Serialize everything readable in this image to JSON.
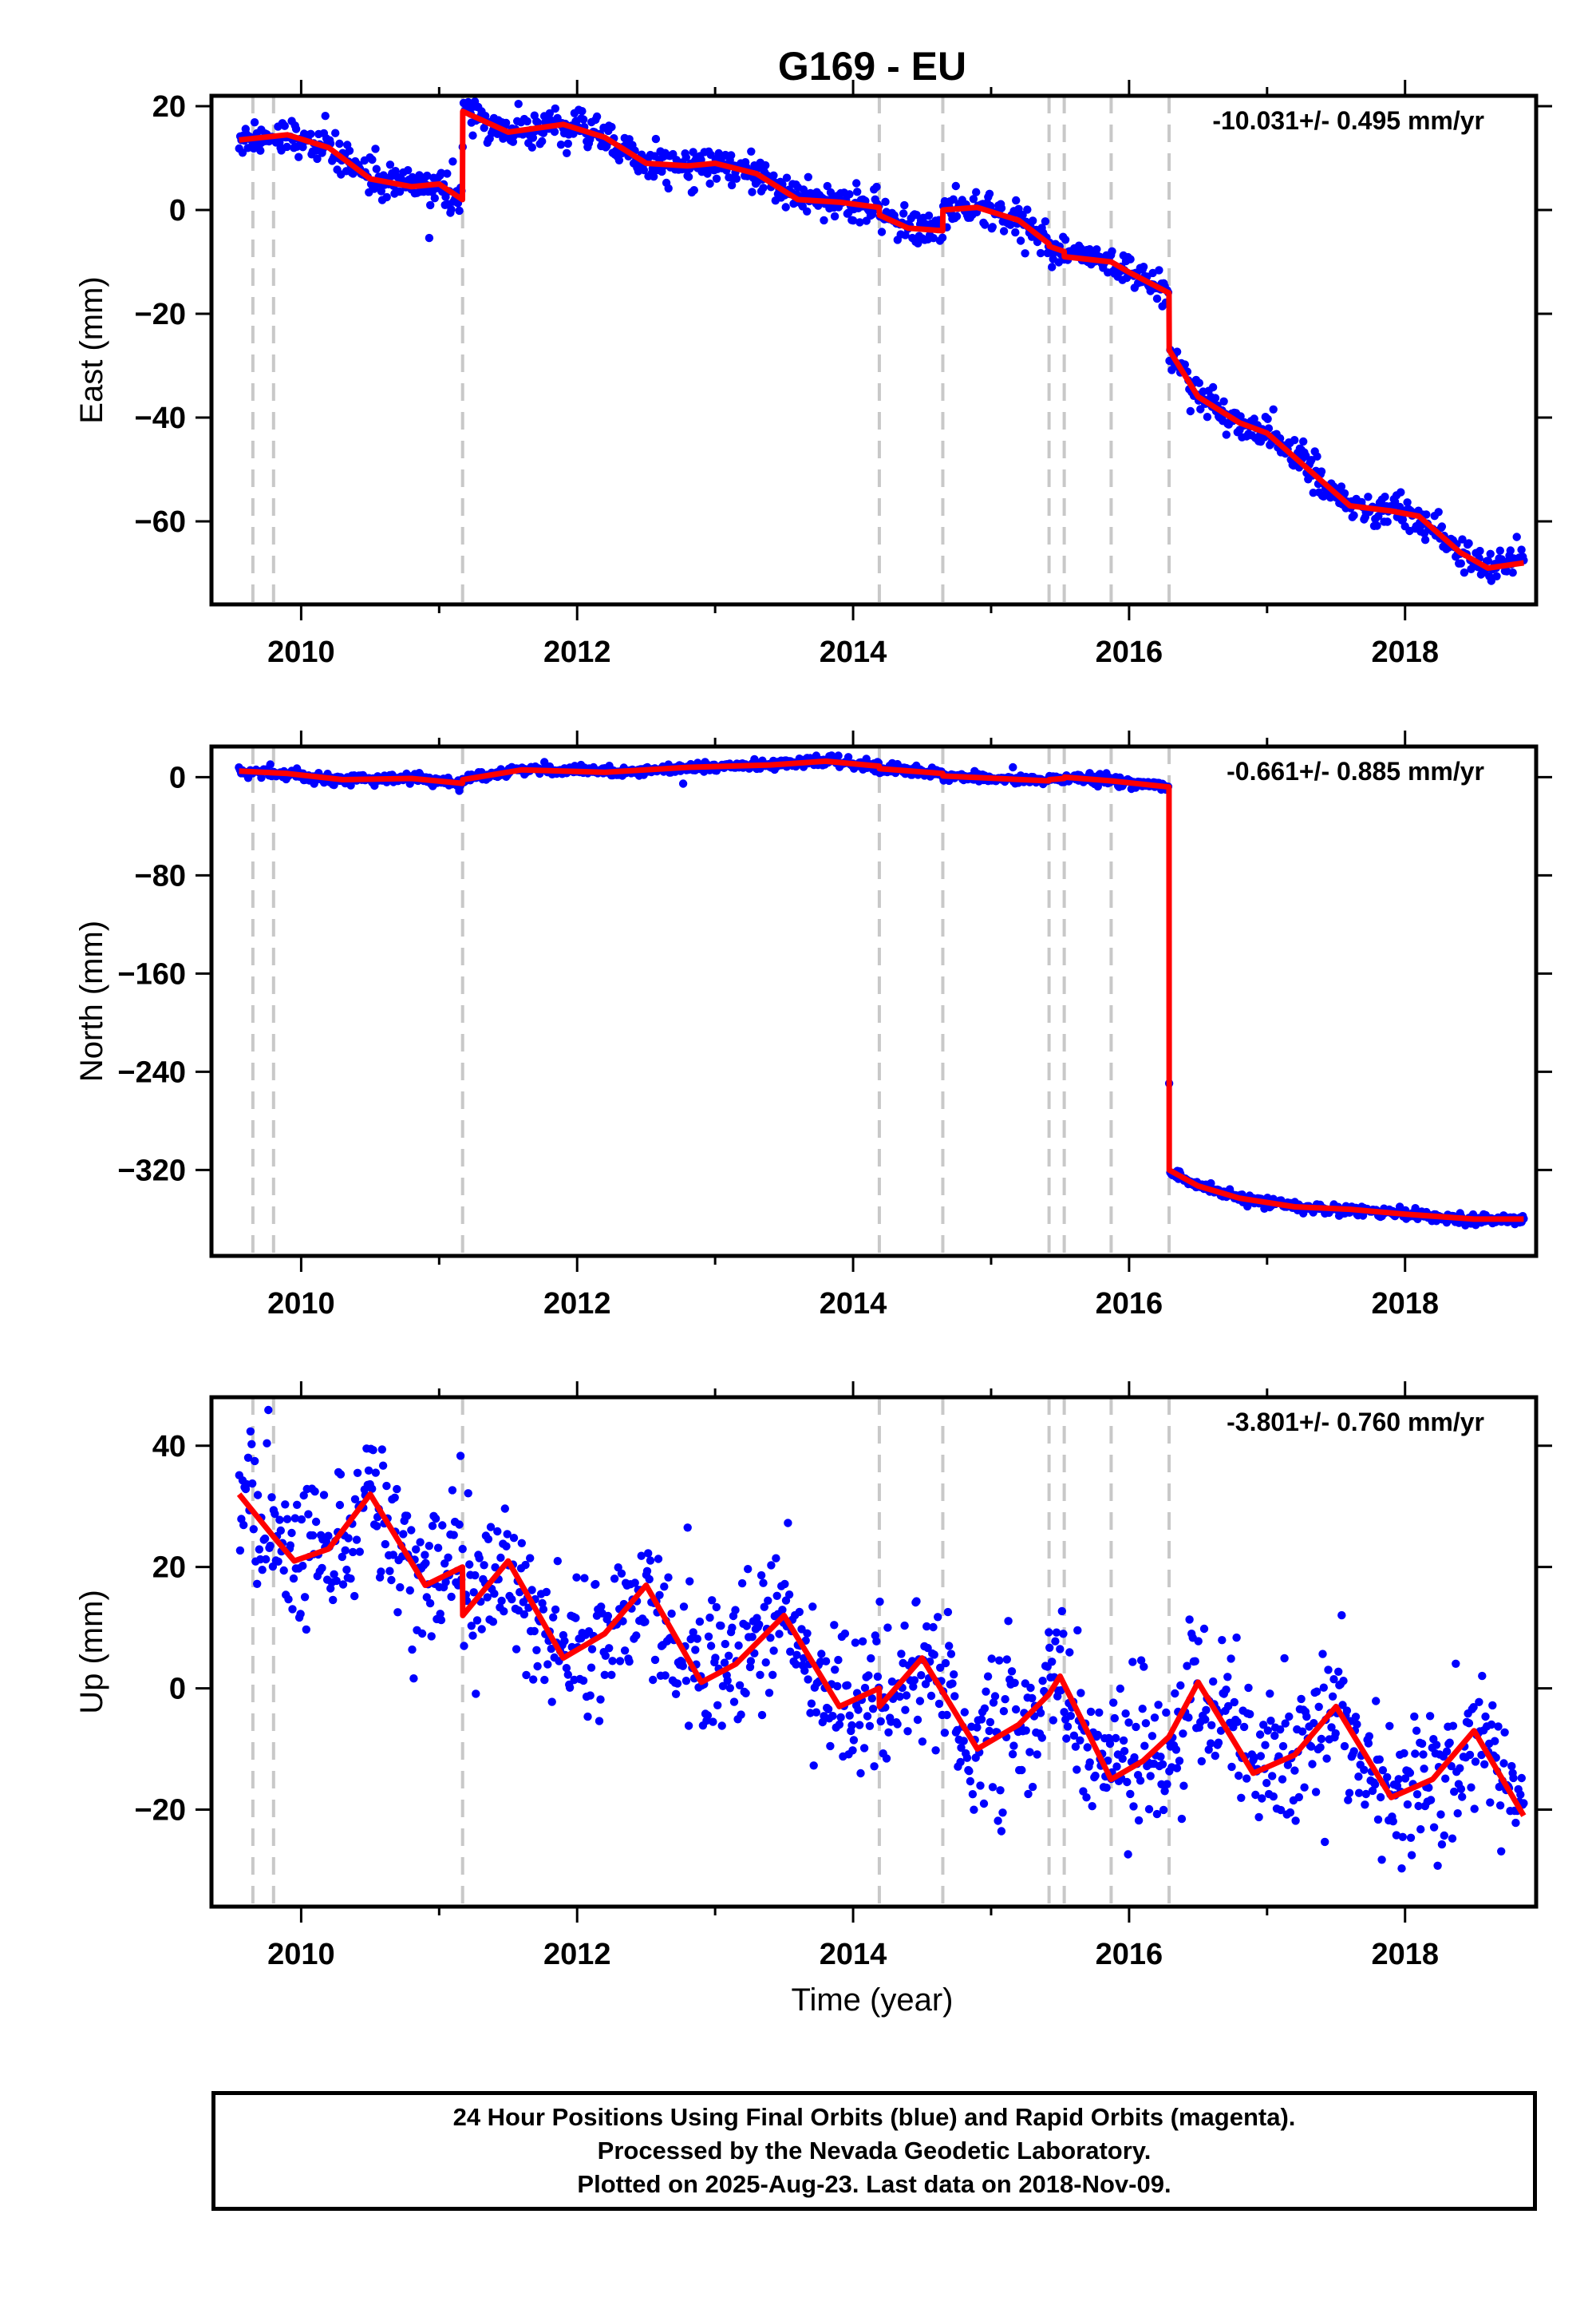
{
  "chart_data": {
    "title": "G169 - EU",
    "xlabel": "Time (year)",
    "x_ticks": [
      2010,
      2012,
      2014,
      2016,
      2018
    ],
    "xlim": [
      2009.35,
      2018.95
    ],
    "data_start": 2009.55,
    "data_end": 2018.86,
    "breaks": [
      2009.65,
      2009.8,
      2011.17,
      2014.19,
      2014.65,
      2015.42,
      2015.53,
      2015.87,
      2016.29
    ],
    "colors": {
      "points": "#0000ff",
      "model": "#ff0000",
      "breaks": "#c8c8c8"
    },
    "panels": [
      {
        "id": "east",
        "type": "scatter",
        "ylabel": "East (mm)",
        "rate": "-10.031+/- 0.495 mm/yr",
        "ylim": [
          -76,
          22
        ],
        "yticks": [
          20,
          0,
          -20,
          -40,
          -60
        ],
        "ytick_labels": [
          "20",
          "0",
          "−20",
          "−40",
          "−60"
        ],
        "noise": 1.6,
        "model": [
          [
            2009.55,
            13.5
          ],
          [
            2009.9,
            14.5
          ],
          [
            2010.2,
            12
          ],
          [
            2010.5,
            6
          ],
          [
            2010.8,
            4.5
          ],
          [
            2011.0,
            5
          ],
          [
            2011.169,
            2
          ],
          [
            2011.171,
            19
          ],
          [
            2011.5,
            15
          ],
          [
            2011.9,
            16.5
          ],
          [
            2012.2,
            14
          ],
          [
            2012.5,
            9
          ],
          [
            2012.8,
            8.5
          ],
          [
            2013.0,
            9
          ],
          [
            2013.3,
            7
          ],
          [
            2013.6,
            2
          ],
          [
            2013.9,
            1.5
          ],
          [
            2014.189,
            0.5
          ],
          [
            2014.191,
            -1
          ],
          [
            2014.4,
            -3.5
          ],
          [
            2014.649,
            -4
          ],
          [
            2014.651,
            0
          ],
          [
            2014.9,
            0.5
          ],
          [
            2015.2,
            -2
          ],
          [
            2015.419,
            -6.5
          ],
          [
            2015.421,
            -7
          ],
          [
            2015.529,
            -8
          ],
          [
            2015.531,
            -9
          ],
          [
            2015.869,
            -10
          ],
          [
            2015.871,
            -10
          ],
          [
            2016.0,
            -12
          ],
          [
            2016.289,
            -16
          ],
          [
            2016.291,
            -27
          ],
          [
            2016.5,
            -36
          ],
          [
            2016.8,
            -41
          ],
          [
            2017.0,
            -43
          ],
          [
            2017.3,
            -50
          ],
          [
            2017.6,
            -57
          ],
          [
            2017.9,
            -58
          ],
          [
            2018.1,
            -59
          ],
          [
            2018.4,
            -66
          ],
          [
            2018.6,
            -69
          ],
          [
            2018.86,
            -68
          ]
        ]
      },
      {
        "id": "north",
        "type": "scatter",
        "ylabel": "North (mm)",
        "rate": "-0.661+/- 0.885 mm/yr",
        "ylim": [
          -390,
          25
        ],
        "yticks": [
          0,
          -80,
          -160,
          -240,
          -320
        ],
        "ytick_labels": [
          "0",
          "−80",
          "−160",
          "−240",
          "−320"
        ],
        "noise": 2.0,
        "model": [
          [
            2009.55,
            5
          ],
          [
            2009.9,
            3
          ],
          [
            2010.3,
            -2
          ],
          [
            2010.8,
            -1
          ],
          [
            2011.169,
            -5
          ],
          [
            2011.171,
            -2
          ],
          [
            2011.6,
            6
          ],
          [
            2012.2,
            4
          ],
          [
            2012.8,
            8
          ],
          [
            2013.4,
            10
          ],
          [
            2013.8,
            13
          ],
          [
            2014.189,
            9
          ],
          [
            2014.191,
            7
          ],
          [
            2014.649,
            3
          ],
          [
            2014.651,
            1
          ],
          [
            2015.419,
            -3
          ],
          [
            2015.421,
            -2
          ],
          [
            2015.529,
            -1
          ],
          [
            2015.531,
            0
          ],
          [
            2015.869,
            -3
          ],
          [
            2015.871,
            -3
          ],
          [
            2016.289,
            -8
          ],
          [
            2016.291,
            -320
          ],
          [
            2016.5,
            -333
          ],
          [
            2016.8,
            -343
          ],
          [
            2017.2,
            -350
          ],
          [
            2017.6,
            -352
          ],
          [
            2018.0,
            -356
          ],
          [
            2018.5,
            -360
          ],
          [
            2018.86,
            -360
          ]
        ]
      },
      {
        "id": "up",
        "type": "scatter",
        "ylabel": "Up (mm)",
        "rate": "-3.801+/- 0.760 mm/yr",
        "ylim": [
          -36,
          48
        ],
        "yticks": [
          40,
          20,
          0,
          -20
        ],
        "ytick_labels": [
          "40",
          "20",
          "0",
          "−20"
        ],
        "noise": 6.0,
        "model": [
          [
            2009.55,
            32
          ],
          [
            2009.8,
            25
          ],
          [
            2009.95,
            21
          ],
          [
            2010.2,
            23
          ],
          [
            2010.5,
            32
          ],
          [
            2010.9,
            17
          ],
          [
            2011.169,
            20
          ],
          [
            2011.171,
            12
          ],
          [
            2011.5,
            21
          ],
          [
            2011.9,
            5
          ],
          [
            2012.2,
            9
          ],
          [
            2012.5,
            17
          ],
          [
            2012.9,
            1
          ],
          [
            2013.15,
            4
          ],
          [
            2013.5,
            12
          ],
          [
            2013.9,
            -3
          ],
          [
            2014.189,
            0
          ],
          [
            2014.191,
            -3
          ],
          [
            2014.5,
            5
          ],
          [
            2014.9,
            -10
          ],
          [
            2015.2,
            -6
          ],
          [
            2015.419,
            -1
          ],
          [
            2015.5,
            2
          ],
          [
            2015.869,
            -15
          ],
          [
            2015.871,
            -15
          ],
          [
            2016.1,
            -12
          ],
          [
            2016.289,
            -8
          ],
          [
            2016.5,
            1
          ],
          [
            2016.9,
            -14
          ],
          [
            2017.2,
            -11
          ],
          [
            2017.5,
            -3
          ],
          [
            2017.9,
            -18
          ],
          [
            2018.2,
            -15
          ],
          [
            2018.5,
            -7
          ],
          [
            2018.86,
            -21
          ]
        ]
      }
    ]
  },
  "footer": {
    "line1": "24 Hour Positions Using Final Orbits (blue) and Rapid Orbits (magenta).",
    "line2": "Processed by the Nevada Geodetic Laboratory.",
    "line3": "Plotted on 2025-Aug-23. Last data on 2018-Nov-09."
  }
}
